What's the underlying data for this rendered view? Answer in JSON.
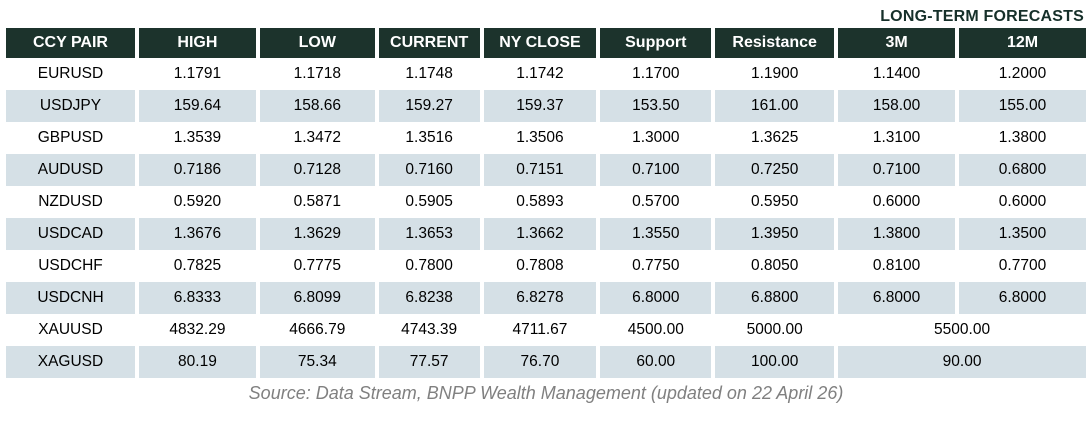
{
  "header": {
    "title": "LONG-TERM FORECASTS"
  },
  "table": {
    "headers": [
      "CCY PAIR",
      "HIGH",
      "LOW",
      "CURRENT",
      "NY CLOSE",
      "Support",
      "Resistance",
      "3M",
      "12M"
    ],
    "rows": [
      {
        "pair": "EURUSD",
        "high": "1.1791",
        "low": "1.1718",
        "current": "1.1748",
        "ny_close": "1.1742",
        "support": "1.1700",
        "resistance": "1.1900",
        "m3": "1.1400",
        "m12": "1.2000"
      },
      {
        "pair": "USDJPY",
        "high": "159.64",
        "low": "158.66",
        "current": "159.27",
        "ny_close": "159.37",
        "support": "153.50",
        "resistance": "161.00",
        "m3": "158.00",
        "m12": "155.00"
      },
      {
        "pair": "GBPUSD",
        "high": "1.3539",
        "low": "1.3472",
        "current": "1.3516",
        "ny_close": "1.3506",
        "support": "1.3000",
        "resistance": "1.3625",
        "m3": "1.3100",
        "m12": "1.3800"
      },
      {
        "pair": "AUDUSD",
        "high": "0.7186",
        "low": "0.7128",
        "current": "0.7160",
        "ny_close": "0.7151",
        "support": "0.7100",
        "resistance": "0.7250",
        "m3": "0.7100",
        "m12": "0.6800"
      },
      {
        "pair": "NZDUSD",
        "high": "0.5920",
        "low": "0.5871",
        "current": "0.5905",
        "ny_close": "0.5893",
        "support": "0.5700",
        "resistance": "0.5950",
        "m3": "0.6000",
        "m12": "0.6000"
      },
      {
        "pair": "USDCAD",
        "high": "1.3676",
        "low": "1.3629",
        "current": "1.3653",
        "ny_close": "1.3662",
        "support": "1.3550",
        "resistance": "1.3950",
        "m3": "1.3800",
        "m12": "1.3500"
      },
      {
        "pair": "USDCHF",
        "high": "0.7825",
        "low": "0.7775",
        "current": "0.7800",
        "ny_close": "0.7808",
        "support": "0.7750",
        "resistance": "0.8050",
        "m3": "0.8100",
        "m12": "0.7700"
      },
      {
        "pair": "USDCNH",
        "high": "6.8333",
        "low": "6.8099",
        "current": "6.8238",
        "ny_close": "6.8278",
        "support": "6.8000",
        "resistance": "6.8800",
        "m3": "6.8000",
        "m12": "6.8000"
      },
      {
        "pair": "XAUUSD",
        "high": "4832.29",
        "low": "4666.79",
        "current": "4743.39",
        "ny_close": "4711.67",
        "support": "4500.00",
        "resistance": "5000.00",
        "m3_12": "5500.00"
      },
      {
        "pair": "XAGUSD",
        "high": "80.19",
        "low": "75.34",
        "current": "77.57",
        "ny_close": "76.70",
        "support": "60.00",
        "resistance": "100.00",
        "m3_12": "90.00"
      }
    ]
  },
  "footer": {
    "source": "Source: Data Stream, BNPP Wealth Management (updated on 22 April 26)"
  },
  "colors": {
    "header_bg": "#1c332c",
    "header_text": "#ffffff",
    "stripe": "#d5e0e6",
    "title_text": "#16302a",
    "source_text": "#808080"
  }
}
